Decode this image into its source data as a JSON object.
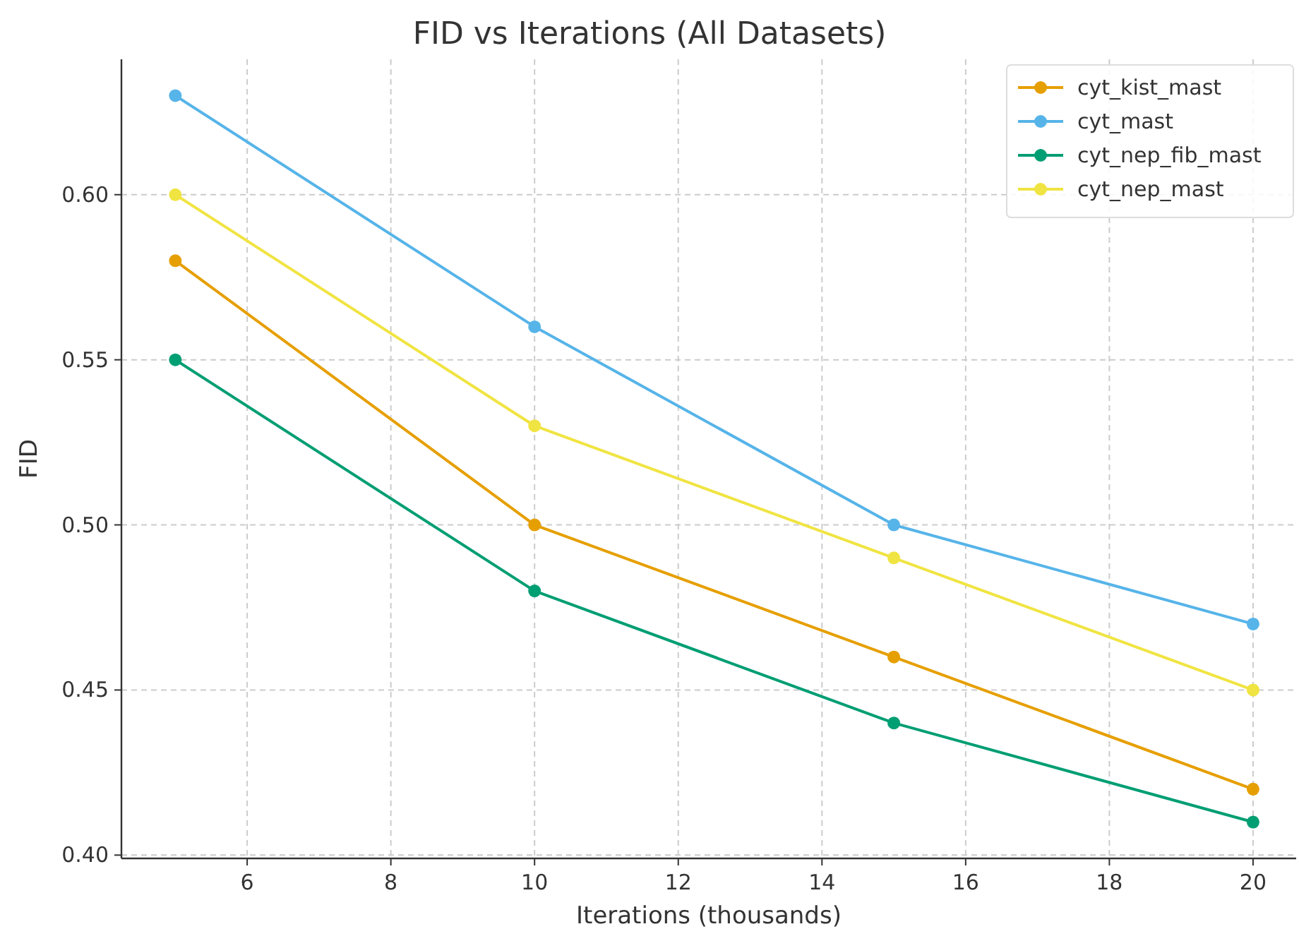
{
  "chart_data": {
    "type": "line",
    "title": "FID vs Iterations (All Datasets)",
    "xlabel": "Iterations (thousands)",
    "ylabel": "FID",
    "x": [
      5,
      10,
      15,
      20
    ],
    "series": [
      {
        "name": "cyt_kist_mast",
        "color": "#e69f00",
        "values": [
          0.58,
          0.5,
          0.46,
          0.42
        ]
      },
      {
        "name": "cyt_mast",
        "color": "#56b4e9",
        "values": [
          0.63,
          0.56,
          0.5,
          0.47
        ]
      },
      {
        "name": "cyt_nep_fib_mast",
        "color": "#009e73",
        "values": [
          0.55,
          0.48,
          0.44,
          0.41
        ]
      },
      {
        "name": "cyt_nep_mast",
        "color": "#f0e442",
        "values": [
          0.6,
          0.53,
          0.49,
          0.45
        ]
      }
    ],
    "xlim": [
      4.25,
      20.6
    ],
    "xticks": [
      6,
      8,
      10,
      12,
      14,
      16,
      18,
      20
    ],
    "ylim": [
      0.399,
      0.641
    ],
    "yticks": [
      {
        "value": 0.4,
        "label": "0.40"
      },
      {
        "value": 0.45,
        "label": "0.45"
      },
      {
        "value": 0.5,
        "label": "0.50"
      },
      {
        "value": 0.55,
        "label": "0.55"
      },
      {
        "value": 0.6,
        "label": "0.60"
      }
    ],
    "grid": true,
    "legend": "top right",
    "marker": "circle",
    "line_style": "solid"
  }
}
